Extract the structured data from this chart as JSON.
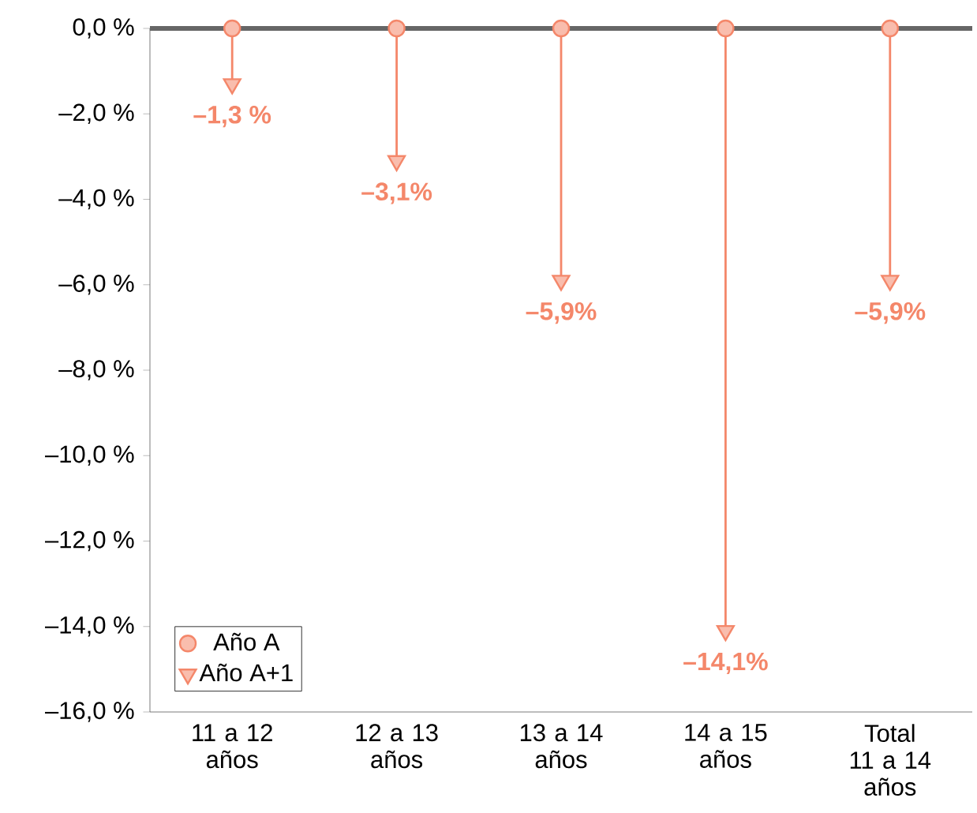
{
  "chart_data": {
    "type": "scatter",
    "categories": [
      "11 a 12 años",
      "12 a 13 años",
      "13 a 14 años",
      "14 a 15 años",
      "Total 11 a 14 años"
    ],
    "series": [
      {
        "name": "Año A",
        "color": "#f4876a",
        "marker": "circle",
        "values": [
          0,
          0,
          0,
          0,
          0
        ]
      },
      {
        "name": "Año A+1",
        "color": "#f4876a",
        "marker": "triangle",
        "values": [
          -1.3,
          -3.1,
          -5.9,
          -14.1,
          -5.9
        ],
        "value_labels": [
          "–1,3 %",
          "–3,1%",
          "–5,9%",
          "–14,1%",
          "–5,9%"
        ]
      }
    ],
    "ylim": [
      -16,
      0
    ],
    "yticks": [
      {
        "value": 0,
        "label": "0,0 %"
      },
      {
        "value": -2,
        "label": "–2,0 %"
      },
      {
        "value": -4,
        "label": "–4,0 %"
      },
      {
        "value": -6,
        "label": "–6,0 %"
      },
      {
        "value": -8,
        "label": "–8,0 %"
      },
      {
        "value": -10,
        "label": "–10,0 %"
      },
      {
        "value": -12,
        "label": "–12,0 %"
      },
      {
        "value": -14,
        "label": "–14,0 %"
      },
      {
        "value": -16,
        "label": "–16,0 %"
      }
    ],
    "grid": false,
    "legend": "bottom left"
  }
}
